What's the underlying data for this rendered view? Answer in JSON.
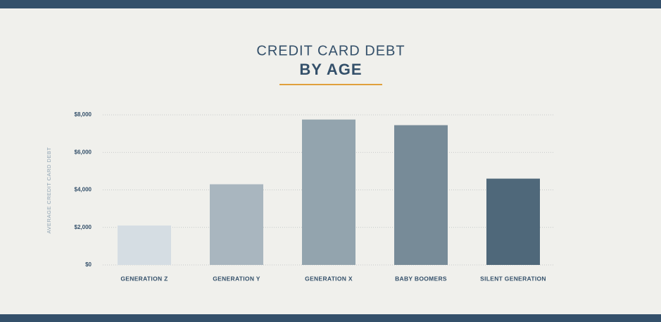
{
  "chart_data": {
    "type": "bar",
    "title": "CREDIT CARD DEBT",
    "subtitle": "BY AGE",
    "y_label": "AVERAGE CREDIT CARD DEBT",
    "categories": [
      "GENERATION Z",
      "GENERATION Y",
      "GENERATION X",
      "BABY BOOMERS",
      "SILENT GENERATION"
    ],
    "values": [
      2100,
      4300,
      7750,
      7450,
      4600
    ],
    "colors": [
      "#d5dde3",
      "#a9b6bf",
      "#93a4ae",
      "#778b98",
      "#4f687a"
    ],
    "ylim": [
      0,
      8000
    ],
    "yticks": [
      {
        "value": 0,
        "label": "$0"
      },
      {
        "value": 2000,
        "label": "$2,000"
      },
      {
        "value": 4000,
        "label": "$4,000"
      },
      {
        "value": 6000,
        "label": "$6,000"
      },
      {
        "value": 8000,
        "label": "$8,000"
      }
    ],
    "grid": true
  }
}
